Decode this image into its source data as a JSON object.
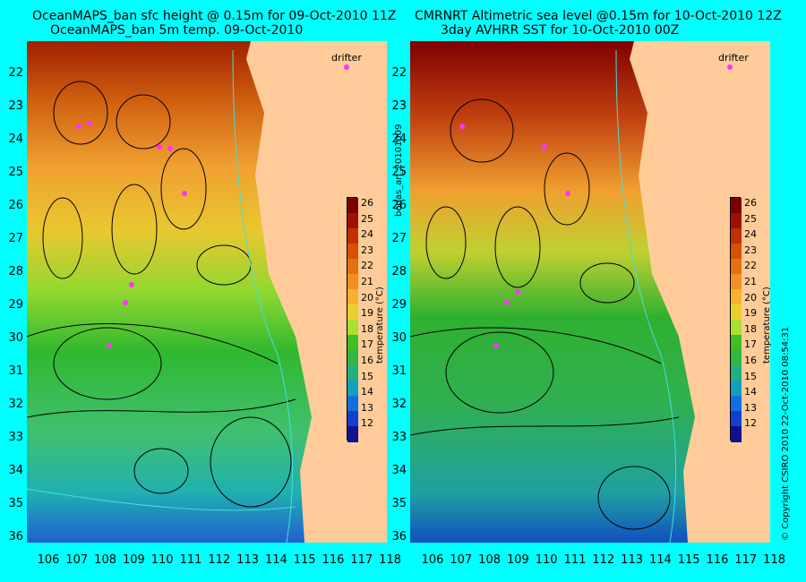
{
  "left": {
    "title1": "OceanMAPS_ban sfc height @ 0.15m for 09-Oct-2010 11Z",
    "title2": "OceanMAPS_ban 5m temp. 09-Oct-2010",
    "drifter_label": "drifter"
  },
  "right": {
    "title1": "CMRNRT Altimetric sea level  @0.15m  for 10-Oct-2010 12Z",
    "title2": "3day AVHRR SST for 10-Oct-2010 00Z",
    "drifter_label": "drifter"
  },
  "center_label": "bodas_an_20101009",
  "right_label": "© Copyright CSIRO 2010   22-Oct-2010 08:54:31",
  "colorbar": {
    "ticks": [
      "26",
      "25",
      "24",
      "23",
      "22",
      "21",
      "20",
      "19",
      "18",
      "17",
      "16",
      "15",
      "14",
      "13",
      "12"
    ],
    "label": "temperature (°C)",
    "colors": [
      "#7a0000",
      "#a01000",
      "#c03000",
      "#d85000",
      "#e57010",
      "#f09020",
      "#f7b030",
      "#e8d030",
      "#a8e030",
      "#40c020",
      "#30b840",
      "#20b080",
      "#10a0c0",
      "#1070e0",
      "#1040d0",
      "#101090"
    ]
  },
  "y_axis": [
    "22",
    "23",
    "24",
    "25",
    "26",
    "27",
    "28",
    "29",
    "30",
    "31",
    "32",
    "33",
    "34",
    "35",
    "36"
  ],
  "x_axis": [
    "106",
    "107",
    "108",
    "109",
    "110",
    "111",
    "112",
    "113",
    "114",
    "115",
    "116",
    "117",
    "118"
  ],
  "colors": {
    "background": "#00ffff",
    "land": "#ffcc99",
    "drifter": "#ff33ff",
    "contour": "#000000",
    "coast": "#40e0e0"
  }
}
